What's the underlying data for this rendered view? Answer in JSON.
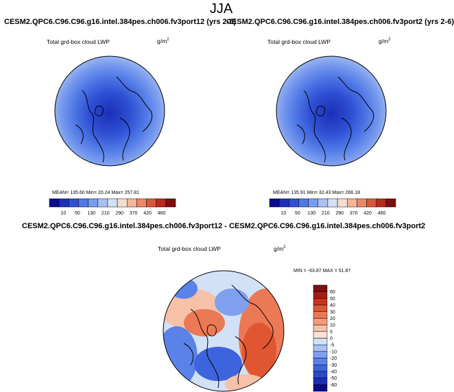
{
  "figure": {
    "season": "JJA",
    "case_a_title": "CESM2.QPC6.C96.C96.g16.intel.384pes.ch006.fv3port12 (yrs 2-6)",
    "case_b_title": "CESM2.QPC6.C96.C96.g16.intel.384pes.ch006.fv3port2 (yrs 2-6)",
    "diff_title": "CESM2.QPC6.C96.C96.g16.intel.384pes.ch006.fv3port12 - CESM2.QPC6.C96.C96.g16.intel.384pes.ch006.fv3port2"
  },
  "panels": {
    "a": {
      "variable": "Total grd-box cloud LWP",
      "units": "g/m",
      "units_exp": "2",
      "stats": "MEAN= 135.60  Min=  20.24  Max= 257.81"
    },
    "b": {
      "variable": "Total grd-box cloud LWP",
      "units": "g/m",
      "units_exp": "2",
      "stats": "MEAN= 135.91  Min=  32.43  Max= 266.18"
    },
    "diff": {
      "variable": "Total grd-box cloud LWP",
      "units": "g/m",
      "units_exp": "2",
      "stats": "MIN = -63.87 MAX =  51.87"
    }
  },
  "colors": {
    "field_colors": [
      "#0a0a8a",
      "#1a2fb8",
      "#2f50d4",
      "#4f78e6",
      "#7a9cee",
      "#a9c1f2",
      "#d4e0f6",
      "#f6ddd0",
      "#f4b59c",
      "#ec8868",
      "#d9573a",
      "#b82a1e",
      "#7d0f0f"
    ],
    "diff_colors": [
      "#0a0a8a",
      "#1a2fb8",
      "#2a48cc",
      "#3d64dc",
      "#5a82e8",
      "#7fa0ee",
      "#a9c1f2",
      "#d2e1f7",
      "#ffffff",
      "#fbe0d3",
      "#f6c1a8",
      "#f29c7c",
      "#ec7956",
      "#e05632",
      "#c93320",
      "#a81a14",
      "#7d0f0f"
    ]
  },
  "chart_data": [
    {
      "type": "map",
      "projection": "north-polar-stereographic",
      "title": "Total grd-box cloud LWP",
      "case": "CESM2.QPC6.C96.C96.g16.intel.384pes.ch006.fv3port12 (yrs 2-6)",
      "units": "g/m2",
      "colorbar_levels": [
        10,
        50,
        90,
        130,
        170,
        210,
        250,
        290,
        330,
        370,
        410,
        420,
        460
      ],
      "colorbar_tick_labels": [
        "10",
        "50",
        "130",
        "210",
        "290",
        "370",
        "420",
        "460"
      ],
      "mean": 135.6,
      "min": 20.24,
      "max": 257.81
    },
    {
      "type": "map",
      "projection": "north-polar-stereographic",
      "title": "Total grd-box cloud LWP",
      "case": "CESM2.QPC6.C96.C96.g16.intel.384pes.ch006.fv3port2 (yrs 2-6)",
      "units": "g/m2",
      "colorbar_levels": [
        10,
        50,
        90,
        130,
        170,
        210,
        250,
        290,
        330,
        370,
        410,
        420,
        460
      ],
      "colorbar_tick_labels": [
        "10",
        "50",
        "130",
        "210",
        "290",
        "370",
        "420",
        "460"
      ],
      "mean": 135.91,
      "min": 32.43,
      "max": 266.18
    },
    {
      "type": "map",
      "projection": "north-polar-stereographic",
      "title": "Total grd-box cloud LWP",
      "case": "fv3port12 - fv3port2",
      "units": "g/m2",
      "colorbar_levels": [
        60,
        50,
        40,
        30,
        20,
        10,
        5,
        0,
        -5,
        -10,
        -20,
        -30,
        -40,
        -50,
        -60
      ],
      "colorbar_tick_labels": [
        "60",
        "50",
        "40",
        "30",
        "20",
        "10",
        "5",
        "0",
        "-5",
        "-10",
        "-20",
        "-30",
        "-40",
        "-50",
        "-60"
      ],
      "min": -63.87,
      "max": 51.87
    }
  ]
}
